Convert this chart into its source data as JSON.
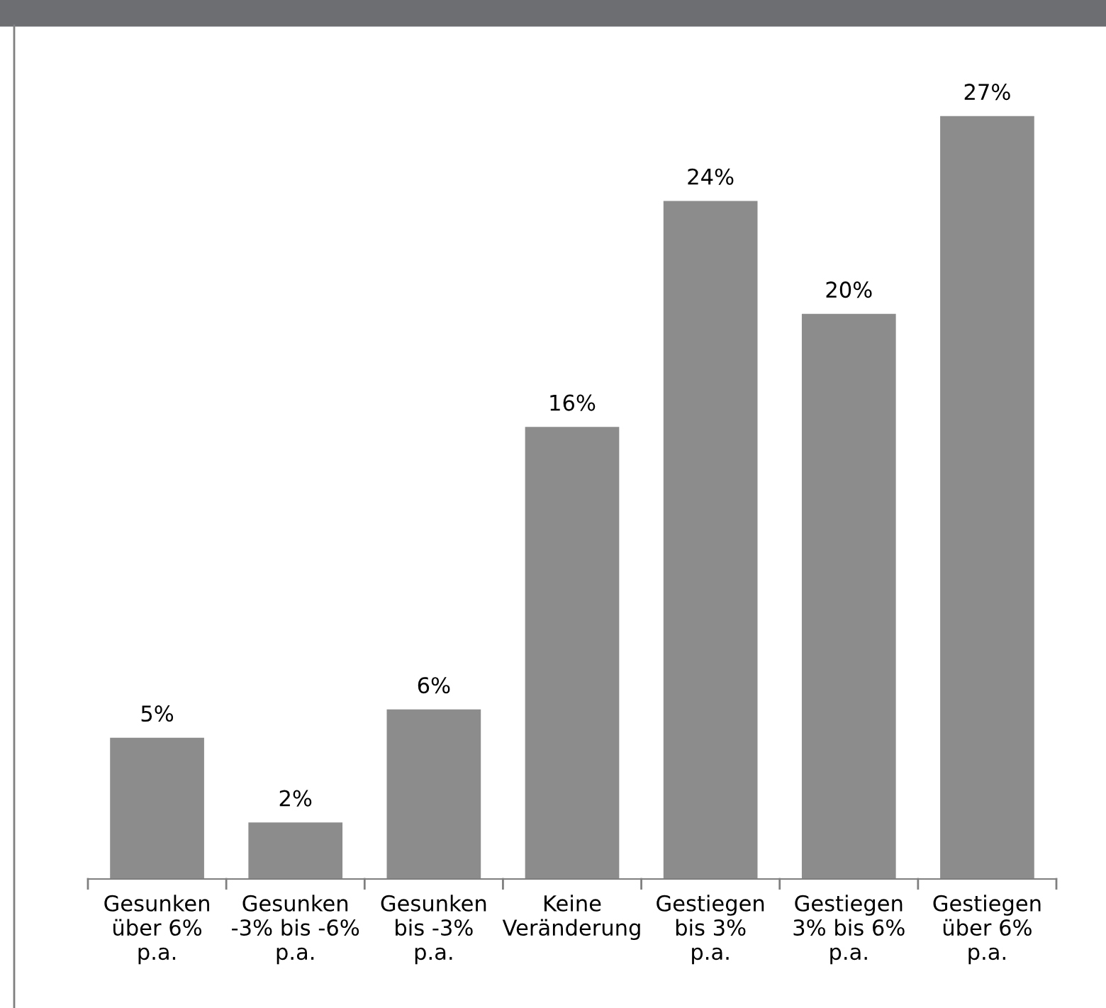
{
  "chart_data": {
    "type": "bar",
    "categories": [
      "Gesunken\nüber 6%\np.a.",
      "Gesunken\n-3% bis -6%\np.a.",
      "Gesunken\nbis -3%\np.a.",
      "Keine\nVeränderung",
      "Gestiegen\nbis 3%\np.a.",
      "Gestiegen\n3% bis 6%\np.a.",
      "Gestiegen\nüber 6%\np.a."
    ],
    "values": [
      5,
      2,
      6,
      16,
      24,
      20,
      27
    ],
    "value_labels": [
      "5%",
      "2%",
      "6%",
      "16%",
      "24%",
      "20%",
      "27%"
    ],
    "color": "#8c8c8c",
    "tick_labels": "x"
  }
}
